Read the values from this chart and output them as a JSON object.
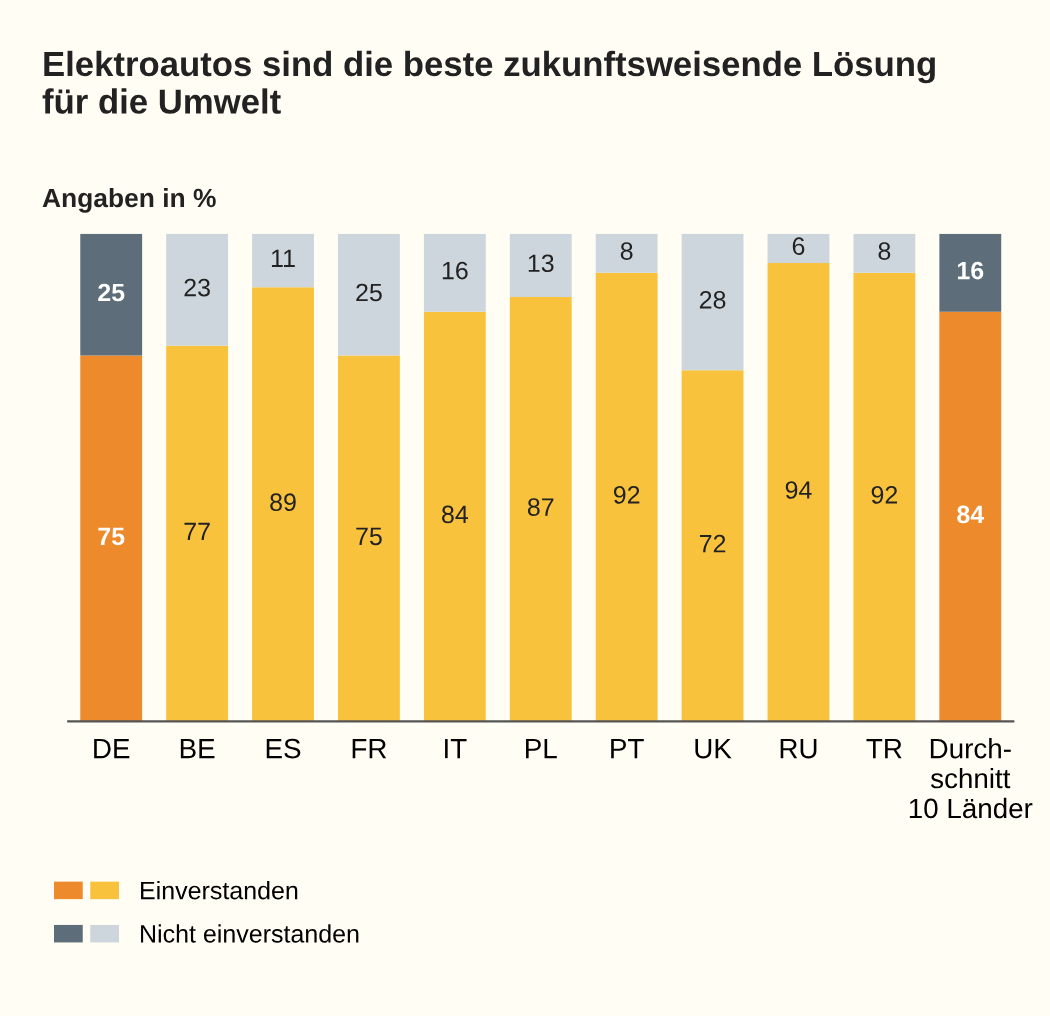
{
  "chart_data": {
    "type": "bar",
    "stacked": true,
    "title": "Elektroautos sind die beste zukunftsweisende Lösung\nfür die Umwelt",
    "subtitle": "Angaben in %",
    "categories": [
      "DE",
      "BE",
      "ES",
      "FR",
      "IT",
      "PL",
      "PT",
      "UK",
      "RU",
      "TR",
      "Durch-\nschnitt\n10 Länder"
    ],
    "series": [
      {
        "name": "Einverstanden",
        "colors": [
          "#ec8a2c",
          "#f9c23c",
          "#f9c23c",
          "#f9c23c",
          "#f9c23c",
          "#f9c23c",
          "#f9c23c",
          "#f9c23c",
          "#f9c23c",
          "#f9c23c",
          "#ec8a2c"
        ],
        "values": [
          75,
          77,
          89,
          75,
          84,
          87,
          92,
          72,
          94,
          92,
          84
        ]
      },
      {
        "name": "Nicht einverstanden",
        "colors": [
          "#5d6e7a",
          "#cdd6dc",
          "#cdd6dc",
          "#cdd6dc",
          "#cdd6dc",
          "#cdd6dc",
          "#cdd6dc",
          "#cdd6dc",
          "#cdd6dc",
          "#cdd6dc",
          "#5d6e7a"
        ],
        "values": [
          25,
          23,
          11,
          25,
          16,
          13,
          8,
          28,
          6,
          8,
          16
        ]
      }
    ],
    "data_labels": true,
    "legend": "bottom",
    "grid": false
  }
}
